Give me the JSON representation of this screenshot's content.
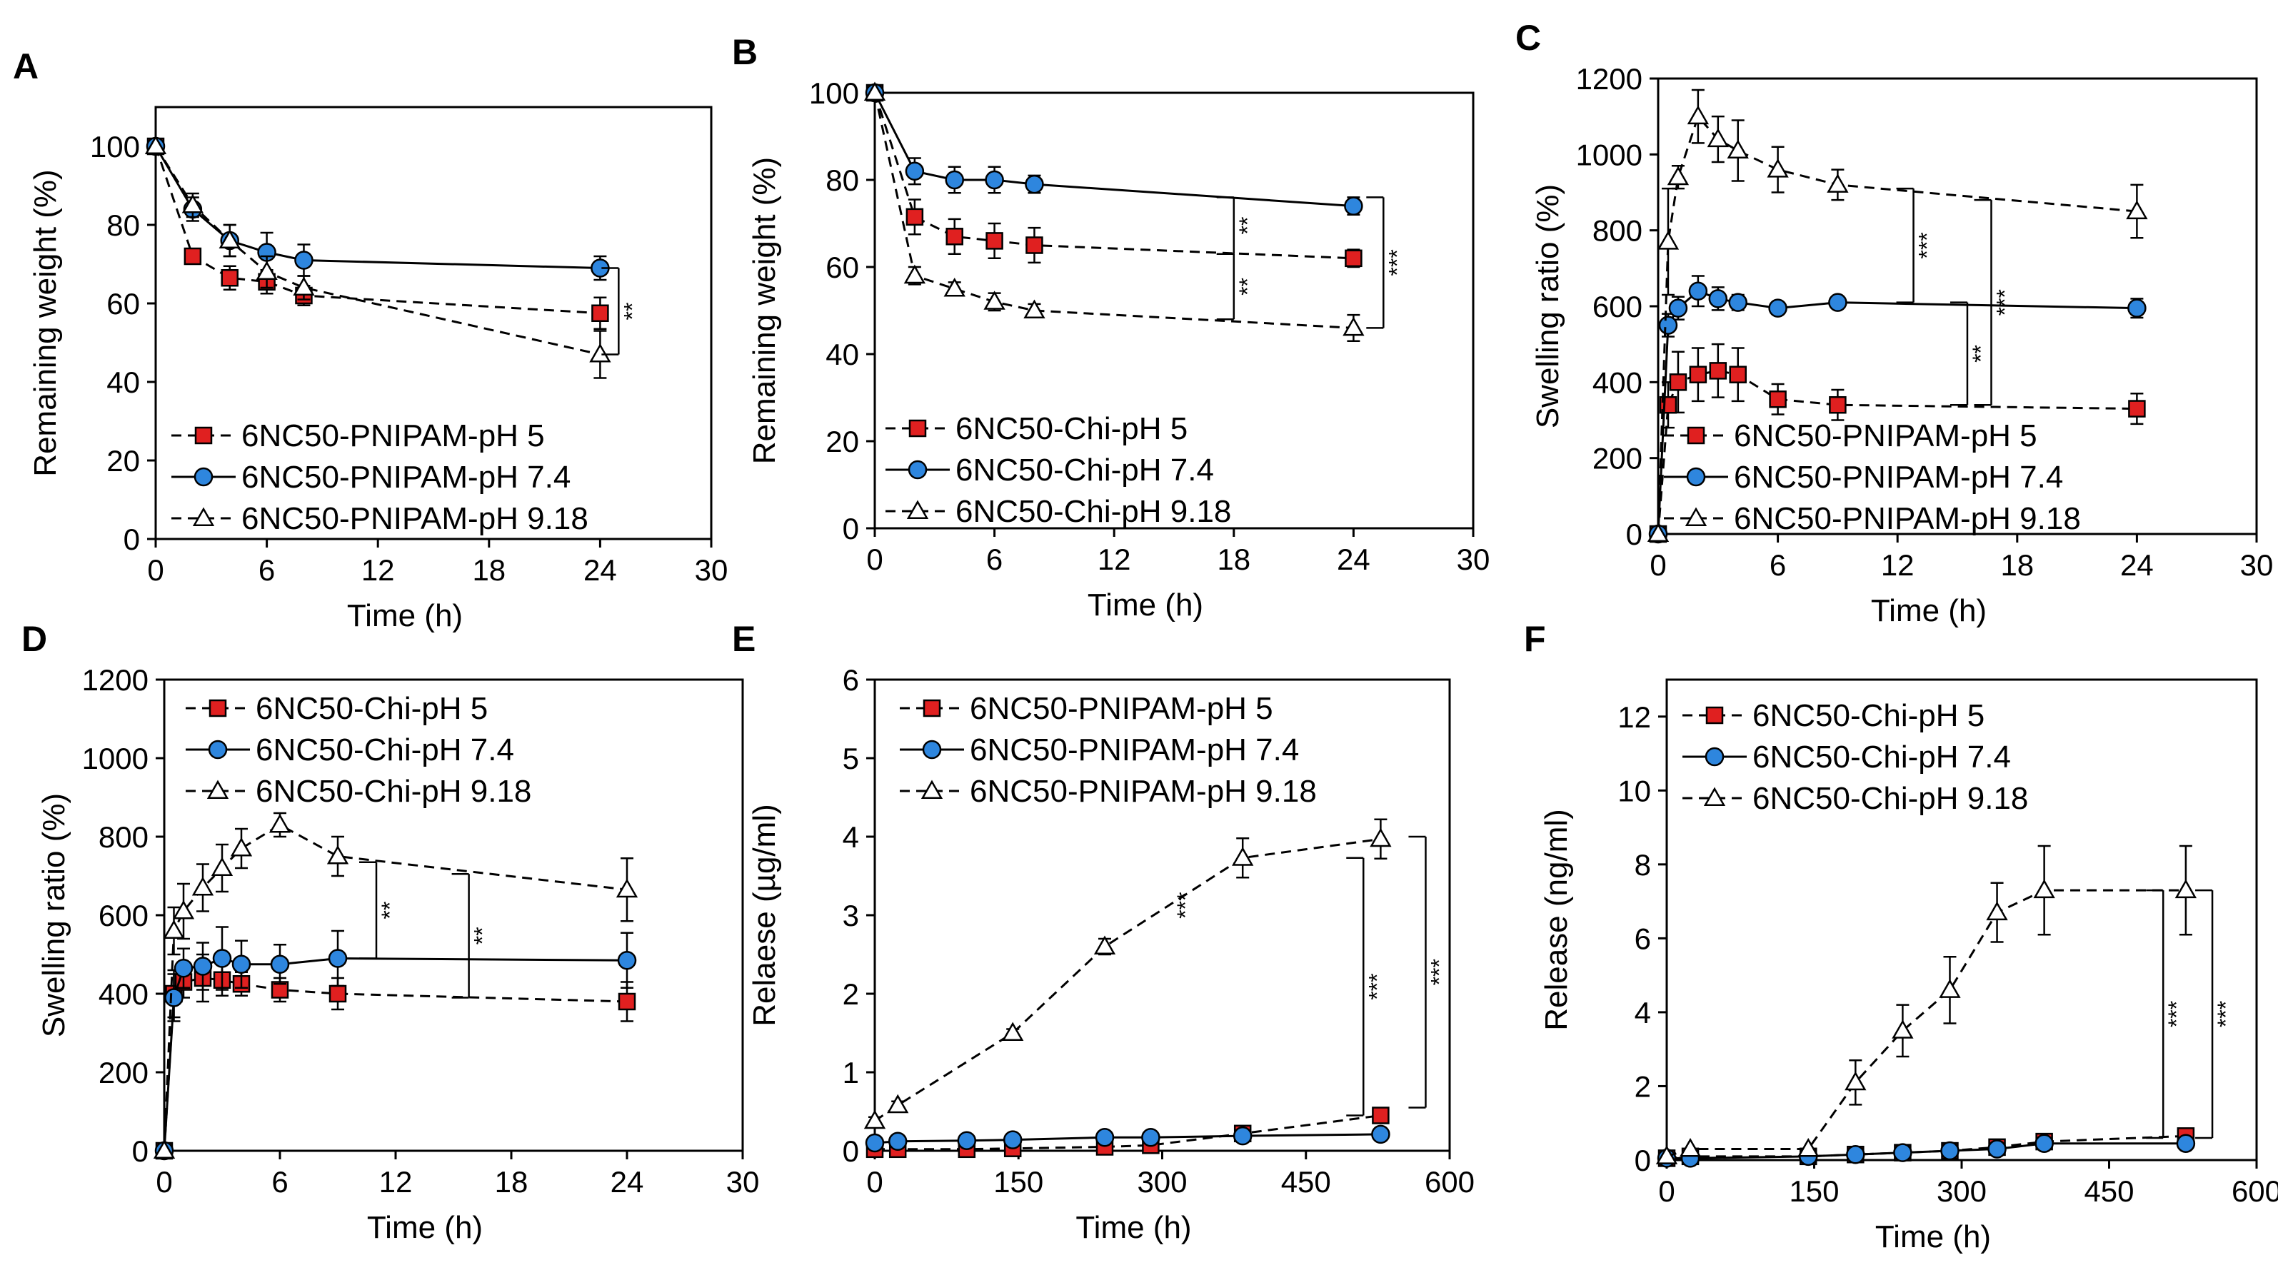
{
  "figure": {
    "colors": {
      "pH5_fill": "#e02020",
      "pH74_fill": "#2e86de",
      "pH918_fill": "#ffffff",
      "stroke": "#000000"
    }
  },
  "chart_data": [
    {
      "panel": "A",
      "type": "line",
      "xlabel": "Time (h)",
      "ylabel": "Remaining  weight  (%)",
      "xlim": [
        0,
        30
      ],
      "ylim": [
        0,
        110
      ],
      "xticks": [
        0,
        6,
        12,
        18,
        24,
        30
      ],
      "yticks": [
        0,
        20,
        40,
        60,
        80,
        100
      ],
      "legend_position": "bottom-left",
      "series": [
        {
          "name": "6NC50-PNIPAM-pH 5",
          "marker": "square",
          "dash": true,
          "x": [
            0,
            2,
            4,
            6,
            8,
            24
          ],
          "y": [
            100,
            72,
            66.5,
            65.5,
            62,
            57.5
          ],
          "err": [
            0,
            1.5,
            3,
            3,
            2.5,
            4
          ]
        },
        {
          "name": "6NC50-PNIPAM-pH 7.4",
          "marker": "circle",
          "dash": false,
          "x": [
            0,
            2,
            4,
            6,
            8,
            24
          ],
          "y": [
            100,
            84,
            76,
            73,
            71,
            69
          ],
          "err": [
            0,
            3,
            4,
            5,
            4,
            3
          ]
        },
        {
          "name": "6NC50-PNIPAM-pH 9.18",
          "marker": "triangle",
          "dash": true,
          "x": [
            0,
            2,
            4,
            6,
            8,
            24
          ],
          "y": [
            100,
            85,
            76,
            68,
            64,
            47
          ],
          "err": [
            0,
            3,
            4,
            4,
            3,
            6
          ]
        }
      ],
      "significance": [
        {
          "label": "**",
          "x": 25,
          "y1": 47,
          "y2": 69
        }
      ]
    },
    {
      "panel": "B",
      "type": "line",
      "xlabel": "Time (h)",
      "ylabel": "Remaining  weight  (%)",
      "xlim": [
        0,
        30
      ],
      "ylim": [
        0,
        100
      ],
      "xticks": [
        0,
        6,
        12,
        18,
        24,
        30
      ],
      "yticks": [
        0,
        20,
        40,
        60,
        80,
        100
      ],
      "legend_position": "bottom-left",
      "series": [
        {
          "name": "6NC50-Chi-pH 5",
          "marker": "square",
          "dash": true,
          "x": [
            0,
            2,
            4,
            6,
            8,
            24
          ],
          "y": [
            100,
            71.5,
            67,
            66,
            65,
            62
          ],
          "err": [
            0,
            4,
            4,
            4,
            4,
            2
          ]
        },
        {
          "name": "6NC50-Chi-pH 7.4",
          "marker": "circle",
          "dash": false,
          "x": [
            0,
            2,
            4,
            6,
            8,
            24
          ],
          "y": [
            100,
            82,
            80,
            80,
            79,
            74
          ],
          "err": [
            0,
            3,
            3,
            3,
            2,
            2
          ]
        },
        {
          "name": "6NC50-Chi-pH 9.18",
          "marker": "triangle",
          "dash": true,
          "x": [
            0,
            2,
            4,
            6,
            8,
            24
          ],
          "y": [
            100,
            58,
            55,
            52,
            50,
            46
          ],
          "err": [
            0,
            2,
            1.5,
            2,
            1.5,
            3
          ]
        }
      ],
      "significance": [
        {
          "label": "**",
          "x": 18,
          "y1": 63,
          "y2": 76
        },
        {
          "label": "**",
          "x": 18,
          "y1": 48,
          "y2": 63
        },
        {
          "label": "***",
          "x": 25.5,
          "y1": 46,
          "y2": 76
        }
      ]
    },
    {
      "panel": "C",
      "type": "line",
      "xlabel": "Time (h)",
      "ylabel": "Swelling  ratio  (%)",
      "xlim": [
        0,
        30
      ],
      "ylim": [
        0,
        1200
      ],
      "xticks": [
        0,
        6,
        12,
        18,
        24,
        30
      ],
      "yticks": [
        0,
        200,
        400,
        600,
        800,
        1000,
        1200
      ],
      "legend_position": "bottom-right",
      "series": [
        {
          "name": "6NC50-PNIPAM-pH 5",
          "marker": "square",
          "dash": true,
          "x": [
            0,
            0.5,
            1,
            2,
            3,
            4,
            6,
            9,
            24
          ],
          "y": [
            0,
            340,
            400,
            420,
            430,
            420,
            355,
            340,
            330
          ],
          "err": [
            0,
            60,
            80,
            70,
            70,
            70,
            40,
            40,
            40
          ]
        },
        {
          "name": "6NC50-PNIPAM-pH 7.4",
          "marker": "circle",
          "dash": false,
          "x": [
            0,
            0.5,
            1,
            2,
            3,
            4,
            6,
            9,
            24
          ],
          "y": [
            0,
            550,
            595,
            640,
            620,
            610,
            595,
            610,
            595
          ],
          "err": [
            0,
            30,
            30,
            40,
            30,
            20,
            15,
            15,
            25
          ]
        },
        {
          "name": "6NC50-PNIPAM-pH 9.18",
          "marker": "triangle",
          "dash": true,
          "x": [
            0,
            0.5,
            1,
            2,
            3,
            4,
            6,
            9,
            24
          ],
          "y": [
            0,
            770,
            940,
            1100,
            1040,
            1010,
            960,
            920,
            850
          ],
          "err": [
            0,
            140,
            30,
            70,
            60,
            80,
            60,
            40,
            70
          ]
        }
      ],
      "significance": [
        {
          "label": "***",
          "x": 12.8,
          "y1": 610,
          "y2": 910
        },
        {
          "label": "**",
          "x": 15.5,
          "y1": 340,
          "y2": 610
        },
        {
          "label": "***",
          "x": 16.7,
          "y1": 340,
          "y2": 880
        }
      ]
    },
    {
      "panel": "D",
      "type": "line",
      "xlabel": "Time (h)",
      "ylabel": "Swelling  ratio  (%)",
      "xlim": [
        0,
        30
      ],
      "ylim": [
        0,
        1200
      ],
      "xticks": [
        0,
        6,
        12,
        18,
        24,
        30
      ],
      "yticks": [
        0,
        200,
        400,
        600,
        800,
        1000,
        1200
      ],
      "legend_position": "top-left",
      "series": [
        {
          "name": "6NC50-Chi-pH 5",
          "marker": "square",
          "dash": true,
          "x": [
            0,
            0.5,
            1,
            2,
            3,
            4,
            6,
            9,
            24
          ],
          "y": [
            0,
            400,
            430,
            440,
            435,
            425,
            410,
            400,
            380
          ],
          "err": [
            0,
            60,
            40,
            60,
            40,
            30,
            30,
            40,
            50
          ]
        },
        {
          "name": "6NC50-Chi-pH 7.4",
          "marker": "circle",
          "dash": false,
          "x": [
            0,
            0.5,
            1,
            2,
            3,
            4,
            6,
            9,
            24
          ],
          "y": [
            0,
            390,
            465,
            470,
            490,
            475,
            475,
            490,
            485
          ],
          "err": [
            0,
            60,
            50,
            60,
            80,
            60,
            50,
            70,
            70
          ]
        },
        {
          "name": "6NC50-Chi-pH 9.18",
          "marker": "triangle",
          "dash": true,
          "x": [
            0,
            0.5,
            1,
            2,
            3,
            4,
            6,
            9,
            24
          ],
          "y": [
            0,
            560,
            610,
            670,
            720,
            770,
            830,
            750,
            665
          ],
          "err": [
            0,
            60,
            70,
            60,
            60,
            50,
            30,
            50,
            80
          ]
        }
      ],
      "significance": [
        {
          "label": "**",
          "x": 11,
          "y1": 490,
          "y2": 735
        },
        {
          "label": "**",
          "x": 15.8,
          "y1": 390,
          "y2": 705
        }
      ]
    },
    {
      "panel": "E",
      "type": "line",
      "xlabel": "Time (h)",
      "ylabel": "Relaese  (µg/ml)",
      "xlim": [
        0,
        600
      ],
      "ylim": [
        0,
        6
      ],
      "xticks": [
        0,
        150,
        300,
        450,
        600
      ],
      "yticks": [
        0,
        1,
        2,
        3,
        4,
        5,
        6
      ],
      "legend_position": "top-left",
      "series": [
        {
          "name": "6NC50-PNIPAM-pH 5",
          "marker": "square",
          "dash": true,
          "x": [
            0,
            24,
            96,
            144,
            240,
            288,
            384,
            528
          ],
          "y": [
            0.02,
            0.02,
            0.02,
            0.03,
            0.05,
            0.07,
            0.22,
            0.45
          ],
          "err": [
            0,
            0,
            0,
            0,
            0,
            0,
            0.03,
            0.03
          ]
        },
        {
          "name": "6NC50-PNIPAM-pH 7.4",
          "marker": "circle",
          "dash": false,
          "x": [
            0,
            24,
            96,
            144,
            240,
            288,
            384,
            528
          ],
          "y": [
            0.1,
            0.12,
            0.13,
            0.14,
            0.17,
            0.17,
            0.19,
            0.21
          ],
          "err": [
            0,
            0,
            0,
            0,
            0,
            0,
            0,
            0
          ]
        },
        {
          "name": "6NC50-PNIPAM-pH 9.18",
          "marker": "triangle",
          "dash": true,
          "x": [
            0,
            24,
            144,
            240,
            384,
            528
          ],
          "y": [
            0.38,
            0.58,
            1.5,
            2.6,
            3.73,
            3.97
          ],
          "err": [
            0.05,
            0.05,
            0.05,
            0.1,
            0.25,
            0.25
          ]
        }
      ],
      "significance": [
        {
          "label": "***",
          "x": 310,
          "y1": 2.95,
          "y2": 3.3,
          "label_only": true
        },
        {
          "label": "***",
          "x": 510,
          "y1": 0.45,
          "y2": 3.73
        },
        {
          "label": "***",
          "x": 575,
          "y1": 0.55,
          "y2": 4
        }
      ]
    },
    {
      "panel": "F",
      "type": "line",
      "xlabel": "Time (h)",
      "ylabel": "Release  (ng/ml)",
      "xlim": [
        0,
        600
      ],
      "ylim": [
        0,
        13
      ],
      "xticks": [
        0,
        150,
        300,
        450,
        600
      ],
      "yticks": [
        0,
        2,
        4,
        6,
        8,
        10,
        12
      ],
      "legend_position": "top-left",
      "series": [
        {
          "name": "6NC50-Chi-pH 5",
          "marker": "square",
          "dash": true,
          "x": [
            0,
            24,
            144,
            192,
            240,
            288,
            336,
            384,
            528
          ],
          "y": [
            0.05,
            0.1,
            0.1,
            0.15,
            0.2,
            0.25,
            0.35,
            0.5,
            0.65
          ],
          "err": [
            0,
            0,
            0,
            0,
            0,
            0,
            0,
            0.1,
            0.1
          ]
        },
        {
          "name": "6NC50-Chi-pH 7.4",
          "marker": "circle",
          "dash": false,
          "x": [
            0,
            24,
            144,
            192,
            240,
            288,
            336,
            384,
            528
          ],
          "y": [
            0.05,
            0.05,
            0.1,
            0.15,
            0.2,
            0.25,
            0.3,
            0.45,
            0.45
          ],
          "err": [
            0,
            0,
            0,
            0,
            0,
            0,
            0,
            0.1,
            0.1
          ]
        },
        {
          "name": "6NC50-Chi-pH 9.18",
          "marker": "triangle",
          "dash": true,
          "x": [
            0,
            24,
            144,
            192,
            240,
            288,
            336,
            384,
            528
          ],
          "y": [
            0.1,
            0.3,
            0.3,
            2.1,
            3.5,
            4.6,
            6.7,
            7.3,
            7.3
          ],
          "err": [
            0,
            0,
            0,
            0.6,
            0.7,
            0.9,
            0.8,
            1.2,
            1.2
          ]
        }
      ],
      "significance": [
        {
          "label": "***",
          "x": 505,
          "y1": 0.6,
          "y2": 7.3
        },
        {
          "label": "***",
          "x": 555,
          "y1": 0.6,
          "y2": 7.3
        }
      ]
    }
  ]
}
